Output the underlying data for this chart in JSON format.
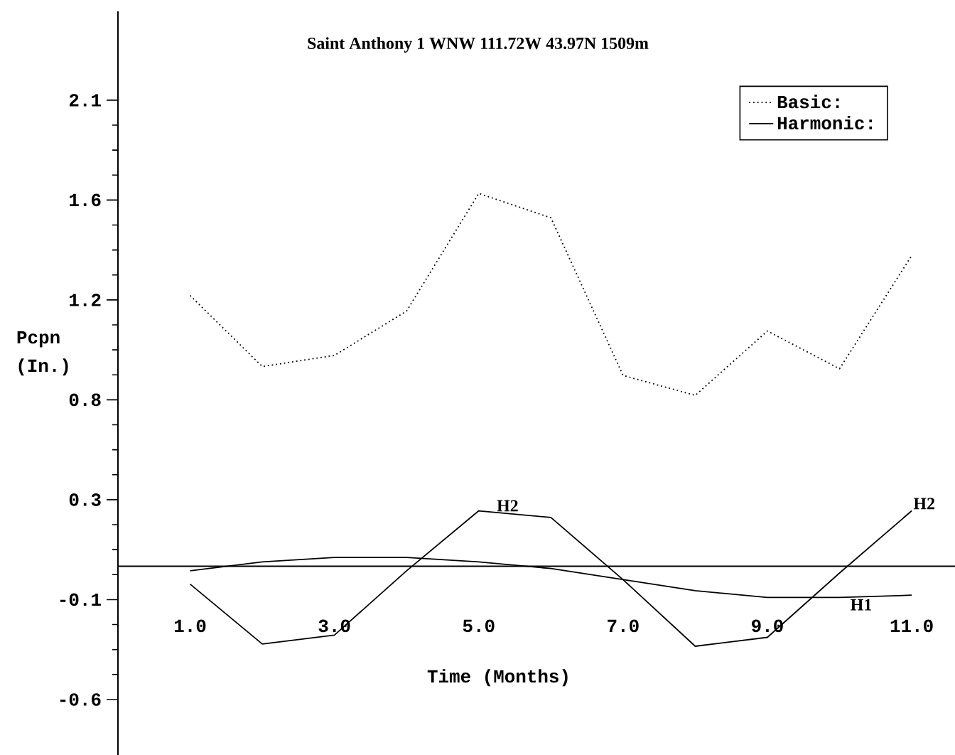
{
  "chart_data": {
    "type": "line",
    "title": "Saint Anthony 1 WNW 111.72W 43.97N 1509m",
    "xlabel": "Time (Months)",
    "ylabel": "Pcpn (In.)",
    "x": [
      1,
      2,
      3,
      4,
      5,
      6,
      7,
      8,
      9,
      10,
      11
    ],
    "series": [
      {
        "name": "Basic:",
        "color": "#000000",
        "line_style": "dotted",
        "values": [
          1.22,
          0.9,
          0.95,
          1.15,
          1.68,
          1.57,
          0.86,
          0.77,
          1.06,
          0.89,
          1.4
        ]
      },
      {
        "name": "Harmonic:",
        "color": "#000000",
        "line_style": "solid",
        "values": [
          -0.08,
          -0.35,
          -0.31,
          -0.02,
          0.25,
          0.22,
          -0.06,
          -0.36,
          -0.32,
          -0.03,
          0.25
        ]
      },
      {
        "color": "#000000",
        "line_style": "solid",
        "values": [
          -0.02,
          0.02,
          0.04,
          0.04,
          0.02,
          -0.01,
          -0.06,
          -0.11,
          -0.14,
          -0.14,
          -0.13
        ]
      }
    ],
    "xlim": [
      0,
      11.6
    ],
    "ylim": [
      -0.85,
      2.5
    ],
    "xticks": [
      {
        "value": 1,
        "label": "1.0"
      },
      {
        "value": 2,
        "label": null
      },
      {
        "value": 3,
        "label": "3.0"
      },
      {
        "value": 4,
        "label": null
      },
      {
        "value": 5,
        "label": "5.0"
      },
      {
        "value": 6,
        "label": null
      },
      {
        "value": 7,
        "label": "7.0"
      },
      {
        "value": 8,
        "label": null
      },
      {
        "value": 9,
        "label": "9.0"
      },
      {
        "value": 10,
        "label": null
      },
      {
        "value": 11,
        "label": "11.0"
      }
    ],
    "yticks": [
      {
        "value": 2.1,
        "label": "2.1"
      },
      {
        "value": 1.65,
        "label": "1.6"
      },
      {
        "value": 1.2,
        "label": "1.2"
      },
      {
        "value": 0.75,
        "label": "0.8"
      },
      {
        "value": 0.3,
        "label": "0.3"
      },
      {
        "value": -0.15,
        "label": "-0.1"
      },
      {
        "value": -0.6,
        "label": "-0.6"
      }
    ],
    "annotations": [
      {
        "text": "H2",
        "x": 5.4,
        "y": 0.24
      },
      {
        "text": "H2",
        "x": 11,
        "y": 0.25
      },
      {
        "text": "H1",
        "x": 10.3,
        "y": -0.14
      }
    ],
    "legend": "top right",
    "grid": false,
    "marker": "none"
  }
}
